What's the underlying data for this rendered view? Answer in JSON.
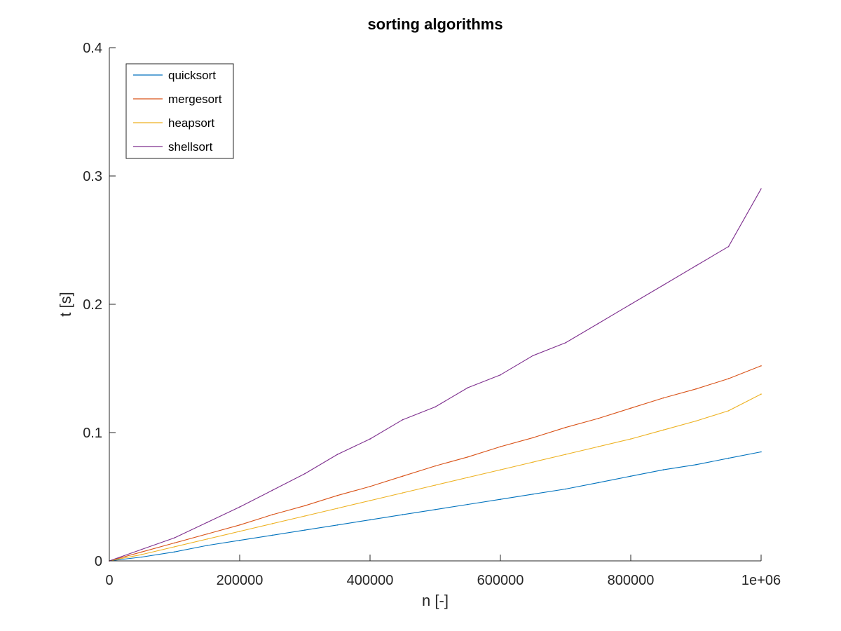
{
  "chart_data": {
    "type": "line",
    "title": "sorting algorithms",
    "xlabel": "n [-]",
    "ylabel": "t [s]",
    "xlim": [
      0,
      1000000
    ],
    "ylim": [
      0,
      0.4
    ],
    "xticks": [
      0,
      200000,
      400000,
      600000,
      800000,
      1000000
    ],
    "xtick_labels": [
      "0",
      "200000",
      "400000",
      "600000",
      "800000",
      "1e+06"
    ],
    "yticks": [
      0,
      0.1,
      0.2,
      0.3,
      0.4
    ],
    "ytick_labels": [
      "0",
      "0.1",
      "0.2",
      "0.3",
      "0.4"
    ],
    "grid": false,
    "legend_position": "top-left",
    "x": [
      0,
      50000,
      100000,
      150000,
      200000,
      250000,
      300000,
      350000,
      400000,
      450000,
      500000,
      550000,
      600000,
      650000,
      700000,
      750000,
      800000,
      850000,
      900000,
      950000,
      1000000
    ],
    "series": [
      {
        "name": "quicksort",
        "color": "#0072BD",
        "values": [
          0,
          0.003,
          0.007,
          0.012,
          0.016,
          0.02,
          0.024,
          0.028,
          0.032,
          0.036,
          0.04,
          0.044,
          0.048,
          0.052,
          0.056,
          0.061,
          0.066,
          0.071,
          0.075,
          0.08,
          0.085
        ]
      },
      {
        "name": "mergesort",
        "color": "#D95319",
        "values": [
          0,
          0.007,
          0.014,
          0.021,
          0.028,
          0.036,
          0.043,
          0.051,
          0.058,
          0.066,
          0.074,
          0.081,
          0.089,
          0.096,
          0.104,
          0.111,
          0.119,
          0.127,
          0.134,
          0.142,
          0.152
        ]
      },
      {
        "name": "heapsort",
        "color": "#EDB120",
        "values": [
          0,
          0.005,
          0.011,
          0.017,
          0.023,
          0.029,
          0.035,
          0.041,
          0.047,
          0.053,
          0.059,
          0.065,
          0.071,
          0.077,
          0.083,
          0.089,
          0.095,
          0.102,
          0.109,
          0.117,
          0.13
        ]
      },
      {
        "name": "shellsort",
        "color": "#7E2F8E",
        "values": [
          0,
          0.009,
          0.018,
          0.03,
          0.042,
          0.055,
          0.068,
          0.083,
          0.095,
          0.11,
          0.12,
          0.135,
          0.145,
          0.16,
          0.17,
          0.185,
          0.2,
          0.215,
          0.23,
          0.245,
          0.29
        ]
      }
    ]
  }
}
